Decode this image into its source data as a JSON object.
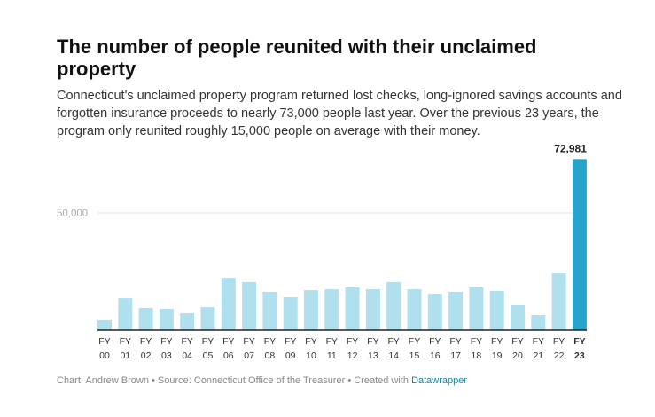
{
  "header": {
    "title": "The number of people reunited with their unclaimed property",
    "description": "Connecticut's unclaimed property program returned lost checks, long-ignored savings accounts and forgotten insurance proceeds to nearly 73,000 people last year. Over the previous 23 years, the program only reunited roughly 15,000 people on average with their money."
  },
  "chart_data": {
    "type": "bar",
    "title": "The number of people reunited with their unclaimed property",
    "categories": [
      "FY 00",
      "FY 01",
      "FY 02",
      "FY 03",
      "FY 04",
      "FY 05",
      "FY 06",
      "FY 07",
      "FY 08",
      "FY 09",
      "FY 10",
      "FY 11",
      "FY 12",
      "FY 13",
      "FY 14",
      "FY 15",
      "FY 16",
      "FY 17",
      "FY 18",
      "FY 19",
      "FY 20",
      "FY 21",
      "FY 22",
      "FY 23"
    ],
    "values": [
      4200,
      13600,
      9500,
      9100,
      7200,
      9800,
      22300,
      20500,
      16300,
      14000,
      17000,
      17400,
      18200,
      17400,
      20500,
      17400,
      15500,
      16300,
      18200,
      16700,
      10600,
      6400,
      24200,
      72981
    ],
    "highlight_index": 23,
    "data_labels": [
      {
        "index": 23,
        "text": "72,981"
      }
    ],
    "yticks": [
      {
        "value": 50000,
        "label": "50,000"
      }
    ],
    "ylim": [
      0,
      72981
    ],
    "grid": true,
    "xlabel": "",
    "ylabel": "",
    "colors": {
      "bar": "#b0dfee",
      "highlight": "#27a3cb",
      "grid": "#e6e6e6",
      "baseline": "#222222"
    }
  },
  "footer": {
    "chart_by": "Chart: Andrew Brown",
    "source": "• Source: Connecticut Office of the Treasurer",
    "created_with": "• Created with",
    "tool": "Datawrapper"
  }
}
